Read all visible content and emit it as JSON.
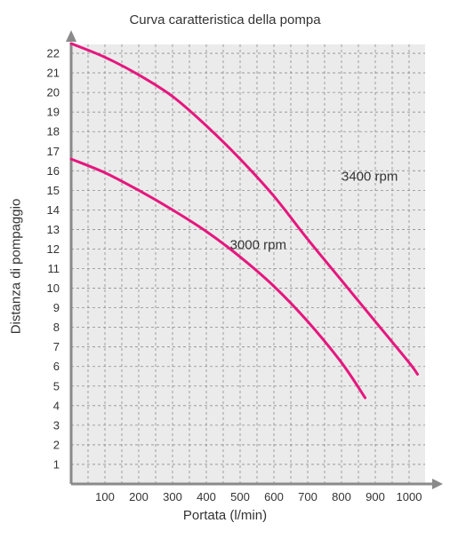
{
  "chart_data": {
    "type": "line",
    "title": "Curva caratteristica della pompa",
    "xlabel": "Portata (l/min)",
    "ylabel": "Distanza di pompaggio",
    "xlim": [
      0,
      1100
    ],
    "ylim": [
      0,
      23
    ],
    "x_ticks": [
      100,
      200,
      300,
      400,
      500,
      600,
      700,
      800,
      900,
      1000
    ],
    "y_ticks": [
      1,
      2,
      3,
      4,
      5,
      6,
      7,
      8,
      9,
      10,
      11,
      12,
      13,
      14,
      15,
      16,
      17,
      18,
      19,
      20,
      21,
      22
    ],
    "grid": true,
    "series": [
      {
        "name": "3400 rpm",
        "color": "#e5177e",
        "points": [
          [
            0,
            22.5
          ],
          [
            100,
            21.8
          ],
          [
            200,
            20.9
          ],
          [
            300,
            19.8
          ],
          [
            400,
            18.3
          ],
          [
            500,
            16.6
          ],
          [
            600,
            14.7
          ],
          [
            700,
            12.5
          ],
          [
            800,
            10.4
          ],
          [
            900,
            8.3
          ],
          [
            1000,
            6.2
          ],
          [
            1025,
            5.6
          ]
        ]
      },
      {
        "name": "3000 rpm",
        "color": "#e5177e",
        "points": [
          [
            0,
            16.6
          ],
          [
            100,
            15.9
          ],
          [
            200,
            15.0
          ],
          [
            300,
            14.0
          ],
          [
            400,
            12.9
          ],
          [
            500,
            11.6
          ],
          [
            600,
            10.1
          ],
          [
            700,
            8.3
          ],
          [
            800,
            6.2
          ],
          [
            870,
            4.4
          ]
        ]
      }
    ],
    "annotations": [
      {
        "text": "3400 rpm",
        "x": 800,
        "y": 15.5
      },
      {
        "text": "3000 rpm",
        "x": 470,
        "y": 12.0
      }
    ]
  }
}
